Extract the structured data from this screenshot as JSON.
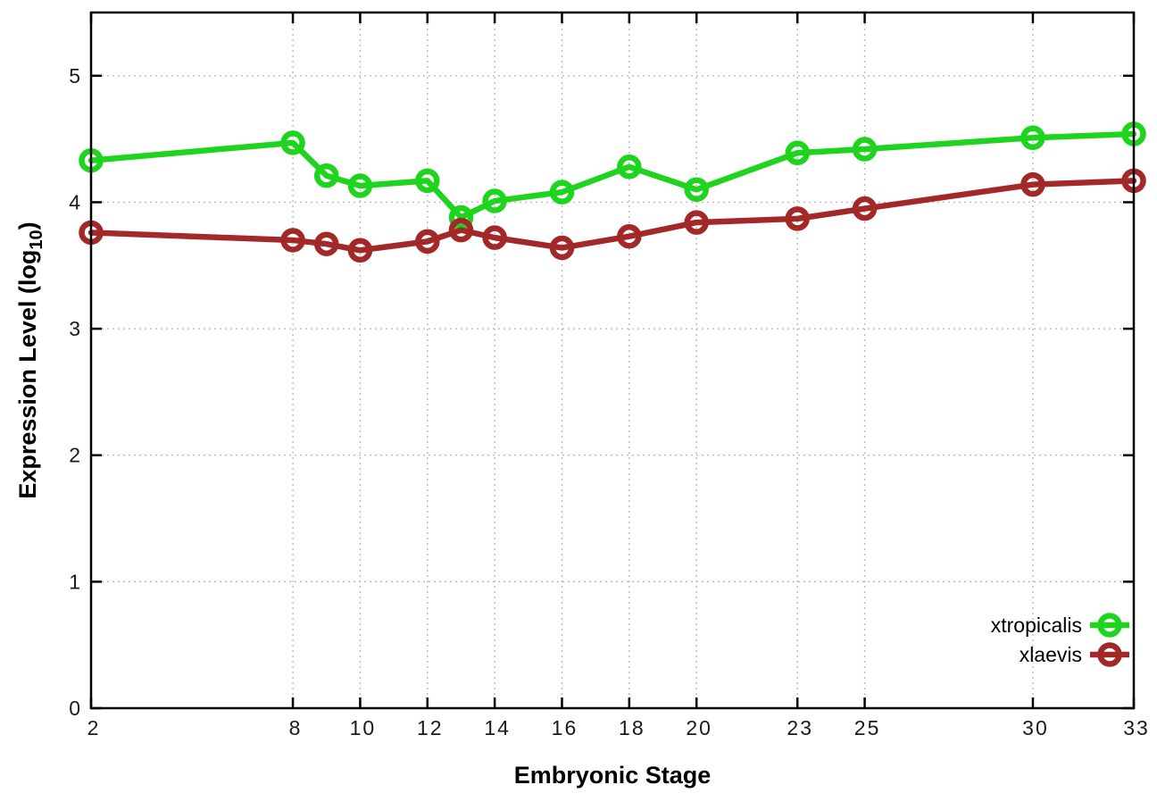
{
  "figure": {
    "background": "#ffffff"
  },
  "chart_data": {
    "type": "line",
    "title": "",
    "xlabel": "Embryonic Stage",
    "ylabel": "Expression Level (log10)",
    "ylabel_parts": {
      "prefix": "Expression Level (log",
      "subscript": "10",
      "suffix": ")"
    },
    "x": [
      2,
      8,
      9,
      10,
      12,
      13,
      14,
      16,
      18,
      20,
      23,
      25,
      30,
      33
    ],
    "series": [
      {
        "name": "xtropicalis",
        "color": "#1fd41f",
        "values": [
          4.33,
          4.47,
          4.21,
          4.13,
          4.17,
          3.88,
          4.01,
          4.08,
          4.28,
          4.1,
          4.39,
          4.42,
          4.51,
          4.54
        ]
      },
      {
        "name": "xlaevis",
        "color": "#a32828",
        "values": [
          3.76,
          3.7,
          3.67,
          3.62,
          3.69,
          3.78,
          3.72,
          3.64,
          3.73,
          3.84,
          3.87,
          3.95,
          4.14,
          4.17
        ]
      }
    ],
    "xlim": [
      2,
      33
    ],
    "ylim": [
      0,
      5.5
    ],
    "x_ticks": [
      2,
      8,
      10,
      12,
      14,
      16,
      18,
      20,
      23,
      25,
      30,
      33
    ],
    "y_ticks": [
      0,
      1,
      2,
      3,
      4,
      5
    ],
    "grid": true,
    "grid_color": "#bbbbbb",
    "axis_color": "#000000",
    "legend_position": "bottom-right",
    "legend_entries": [
      "xtropicalis",
      "xlaevis"
    ]
  }
}
